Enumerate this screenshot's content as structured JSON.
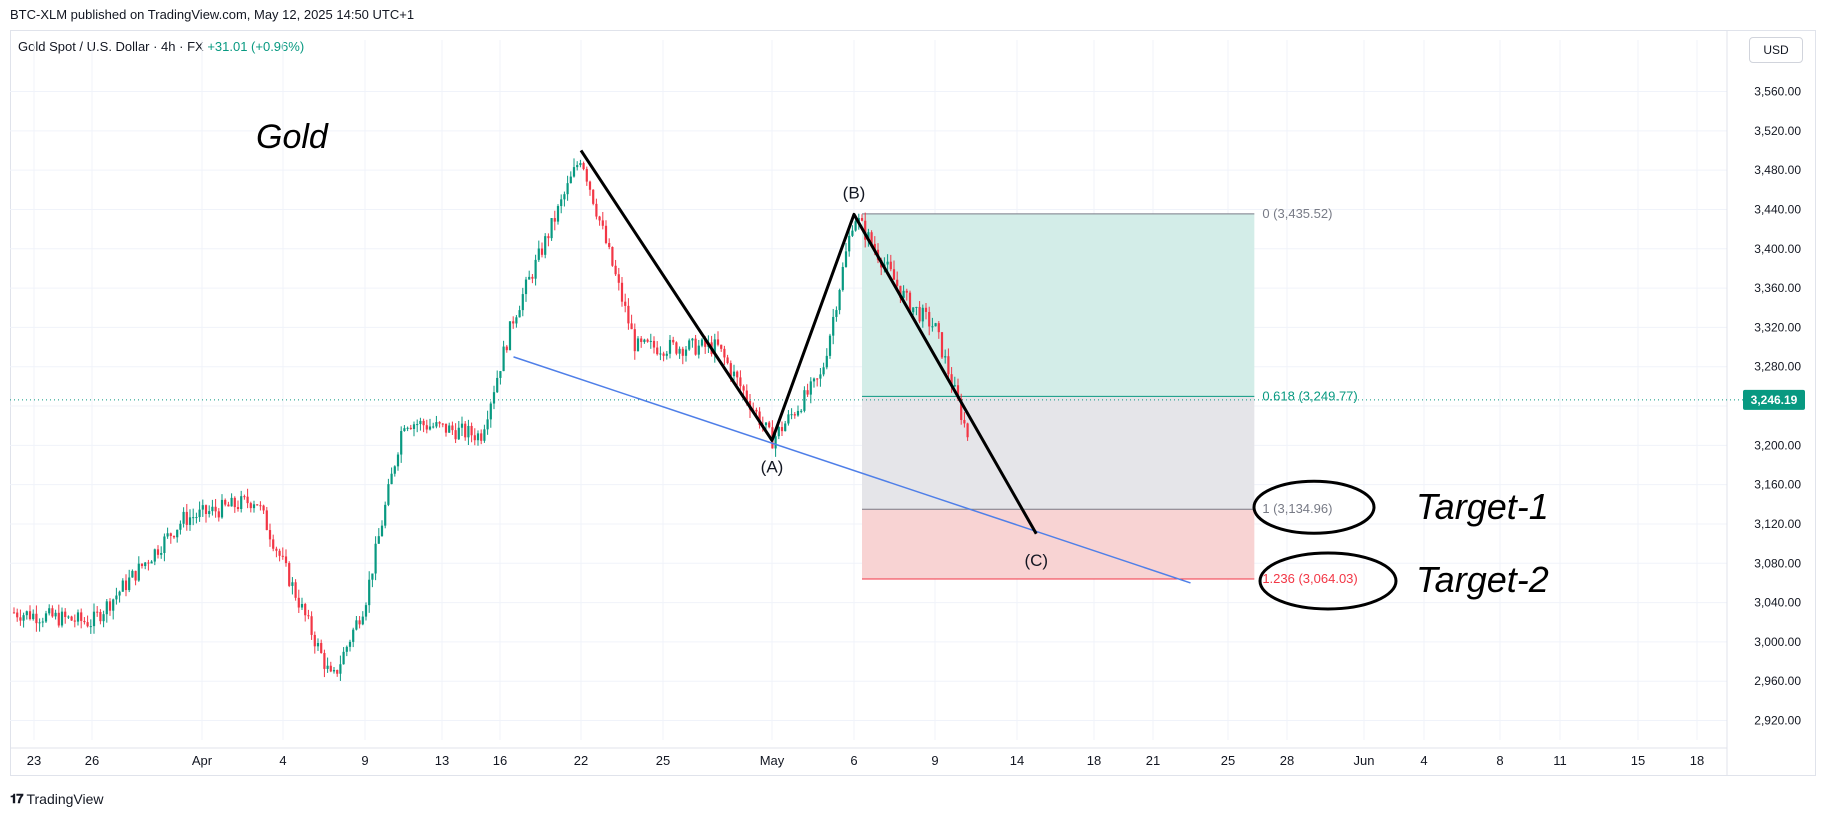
{
  "header": {
    "publisher_line": "BTC-XLM published on TradingView.com, May 12, 2025 14:50 UTC+1"
  },
  "legend": {
    "symbol": "Gold Spot / U.S. Dollar · 4h · FX",
    "change": "+31.01 (+0.96%)"
  },
  "currency_button": "USD",
  "footer": {
    "brand": "TradingView"
  },
  "chart_data": {
    "type": "candlestick",
    "title": "Gold",
    "symbol": "XAUUSD",
    "timeframe": "4h",
    "ylim": [
      2890,
      3590
    ],
    "y_ticks": [
      2920,
      2960,
      3000,
      3040,
      3080,
      3120,
      3160,
      3200,
      3240,
      3280,
      3320,
      3360,
      3400,
      3440,
      3480,
      3520,
      3560
    ],
    "y_tick_labels": [
      "2,920.00",
      "2,960.00",
      "3,000.00",
      "3,040.00",
      "3,080.00",
      "3,120.00",
      "3,160.00",
      "3,200.00",
      "",
      "3,280.00",
      "3,320.00",
      "3,360.00",
      "3,400.00",
      "3,440.00",
      "3,480.00",
      "3,520.00",
      "3,560.00"
    ],
    "x_tick_labels": [
      "23",
      "26",
      "Apr",
      "4",
      "9",
      "13",
      "16",
      "22",
      "25",
      "May",
      "6",
      "9",
      "14",
      "18",
      "21",
      "25",
      "28",
      "Jun",
      "4",
      "8",
      "11",
      "15",
      "18"
    ],
    "last_price": 3246.19,
    "last_price_label": "3,246.19",
    "anchor_points": [
      {
        "date": "2025-03-21",
        "price": 3030
      },
      {
        "date": "2025-03-26",
        "price": 3020
      },
      {
        "date": "2025-03-31",
        "price": 3125
      },
      {
        "date": "2025-04-03",
        "price": 3145
      },
      {
        "date": "2025-04-07",
        "price": 2960
      },
      {
        "date": "2025-04-09",
        "price": 3040
      },
      {
        "date": "2025-04-11",
        "price": 3225
      },
      {
        "date": "2025-04-15",
        "price": 3210
      },
      {
        "date": "2025-04-17",
        "price": 3330
      },
      {
        "date": "2025-04-22",
        "price": 3495
      },
      {
        "date": "2025-04-24",
        "price": 3300
      },
      {
        "date": "2025-04-28",
        "price": 3300
      },
      {
        "date": "2025-05-01",
        "price": 3205
      },
      {
        "date": "2025-05-04",
        "price": 3270
      },
      {
        "date": "2025-05-06",
        "price": 3435
      },
      {
        "date": "2025-05-08",
        "price": 3345
      },
      {
        "date": "2025-05-09",
        "price": 3320
      },
      {
        "date": "2025-05-11",
        "price": 3210
      }
    ],
    "fib_levels": [
      {
        "ratio": 0,
        "price": 3435.52,
        "label": "0 (3,435.52)"
      },
      {
        "ratio": 0.618,
        "price": 3249.77,
        "label": "0.618 (3,249.77)"
      },
      {
        "ratio": 1,
        "price": 3134.96,
        "label": "1 (3,134.96)"
      },
      {
        "ratio": 1.236,
        "price": 3064.03,
        "label": "1.236 (3,064.03)"
      }
    ],
    "waves": [
      {
        "label": "",
        "date": "2025-04-22",
        "price": 3500
      },
      {
        "label": "(A)",
        "date": "2025-05-01",
        "price": 3205
      },
      {
        "label": "(B)",
        "date": "2025-05-06",
        "price": 3435
      },
      {
        "label": "(C)",
        "date": "2025-05-15",
        "price": 3110
      }
    ],
    "trendline": {
      "start_date": "2025-04-17",
      "start_price": 3290,
      "end_date": "2025-05-23",
      "end_price": 3060
    },
    "annotations": [
      "Target-1",
      "Target-2"
    ],
    "colors": {
      "up": "#089981",
      "down": "#f23645",
      "trendline": "#4f7fe8",
      "fib_top": "#d3ede8",
      "fib_mid": "#e5e5e9",
      "fib_low": "#f8d3d3"
    }
  }
}
